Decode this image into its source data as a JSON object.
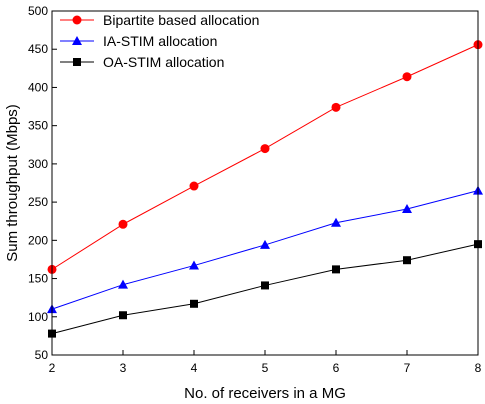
{
  "chart_data": {
    "type": "line",
    "title": "",
    "xlabel": "No. of receivers in a MG",
    "ylabel": "Sum throughput (Mbps)",
    "xlim": [
      2,
      8
    ],
    "ylim": [
      50,
      500
    ],
    "xticks": [
      2,
      3,
      4,
      5,
      6,
      7,
      8
    ],
    "yticks": [
      50,
      100,
      150,
      200,
      250,
      300,
      350,
      400,
      450,
      500
    ],
    "grid": false,
    "legend_position": "top-left",
    "x": [
      2,
      3,
      4,
      5,
      6,
      7,
      8
    ],
    "series": [
      {
        "name": "Bipartite based allocation",
        "color": "#ff0000",
        "marker": "circle",
        "values": [
          162,
          221,
          271,
          320,
          374,
          414,
          456
        ]
      },
      {
        "name": "IA-STIM allocation",
        "color": "#0000ff",
        "marker": "triangle",
        "values": [
          110,
          142,
          167,
          194,
          223,
          241,
          265
        ]
      },
      {
        "name": "OA-STIM allocation",
        "color": "#000000",
        "marker": "square",
        "values": [
          78,
          102,
          117,
          141,
          162,
          174,
          195
        ]
      }
    ]
  }
}
